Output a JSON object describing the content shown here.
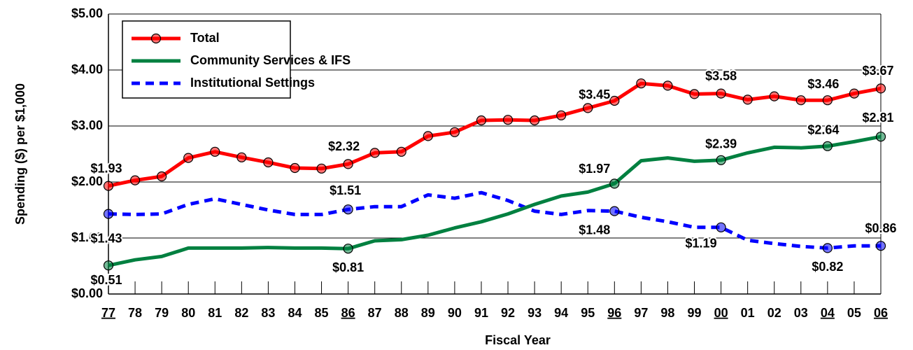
{
  "chart_data": {
    "type": "line",
    "x_label": "Fiscal Year",
    "y_label": "Spending ($) per $1,000",
    "categories": [
      "77",
      "78",
      "79",
      "80",
      "81",
      "82",
      "83",
      "84",
      "85",
      "86",
      "87",
      "88",
      "89",
      "90",
      "91",
      "92",
      "93",
      "94",
      "95",
      "96",
      "97",
      "98",
      "99",
      "00",
      "01",
      "02",
      "03",
      "04",
      "05",
      "06"
    ],
    "ylim": [
      0,
      5
    ],
    "yticks": [
      {
        "value": 0,
        "label": "$0.00"
      },
      {
        "value": 1,
        "label": "$1.00"
      },
      {
        "value": 2,
        "label": "$2.00"
      },
      {
        "value": 3,
        "label": "$3.00"
      },
      {
        "value": 4,
        "label": "$4.00"
      },
      {
        "value": 5,
        "label": "$5.00"
      }
    ],
    "grid": true,
    "legend": "top-left",
    "series": [
      {
        "name": "Total",
        "color": "#ff0000",
        "dash": "solid",
        "marker": "all",
        "values": [
          1.93,
          2.03,
          2.1,
          2.43,
          2.54,
          2.44,
          2.35,
          2.25,
          2.24,
          2.32,
          2.52,
          2.54,
          2.82,
          2.89,
          3.1,
          3.11,
          3.1,
          3.19,
          3.32,
          3.45,
          3.76,
          3.72,
          3.57,
          3.58,
          3.47,
          3.53,
          3.46,
          3.46,
          3.58,
          3.67
        ],
        "value_labels": [
          "$1.93",
          null,
          null,
          null,
          null,
          null,
          null,
          null,
          null,
          "$2.32",
          null,
          null,
          null,
          null,
          null,
          null,
          null,
          null,
          null,
          "$3.45",
          null,
          null,
          null,
          "$3.58",
          null,
          null,
          null,
          "$3.46",
          null,
          "$3.67"
        ]
      },
      {
        "name": "Community Services & IFS",
        "color": "#008040",
        "dash": "solid",
        "marker": "labeled",
        "values": [
          0.51,
          0.61,
          0.67,
          0.82,
          0.82,
          0.82,
          0.83,
          0.82,
          0.82,
          0.81,
          0.95,
          0.97,
          1.05,
          1.18,
          1.29,
          1.43,
          1.6,
          1.75,
          1.82,
          1.97,
          2.38,
          2.43,
          2.37,
          2.39,
          2.52,
          2.62,
          2.61,
          2.64,
          2.72,
          2.81
        ],
        "value_labels": [
          "$0.51",
          null,
          null,
          null,
          null,
          null,
          null,
          null,
          null,
          "$0.81",
          null,
          null,
          null,
          null,
          null,
          null,
          null,
          null,
          null,
          "$1.97",
          null,
          null,
          null,
          "$2.39",
          null,
          null,
          null,
          "$2.64",
          null,
          "$2.81"
        ]
      },
      {
        "name": "Institutional Settings",
        "color": "#0000ff",
        "dash": "dashed",
        "marker": "labeled",
        "values": [
          1.43,
          1.42,
          1.43,
          1.6,
          1.7,
          1.6,
          1.5,
          1.42,
          1.42,
          1.51,
          1.56,
          1.56,
          1.77,
          1.71,
          1.81,
          1.67,
          1.48,
          1.42,
          1.49,
          1.48,
          1.37,
          1.29,
          1.19,
          1.19,
          0.96,
          0.9,
          0.85,
          0.82,
          0.86,
          0.86
        ],
        "value_labels": [
          "$1.43",
          null,
          null,
          null,
          null,
          null,
          null,
          null,
          null,
          "$1.51",
          null,
          null,
          null,
          null,
          null,
          null,
          null,
          null,
          null,
          "$1.48",
          null,
          null,
          null,
          "$1.19",
          null,
          null,
          null,
          "$0.82",
          null,
          "$0.86"
        ]
      }
    ]
  }
}
